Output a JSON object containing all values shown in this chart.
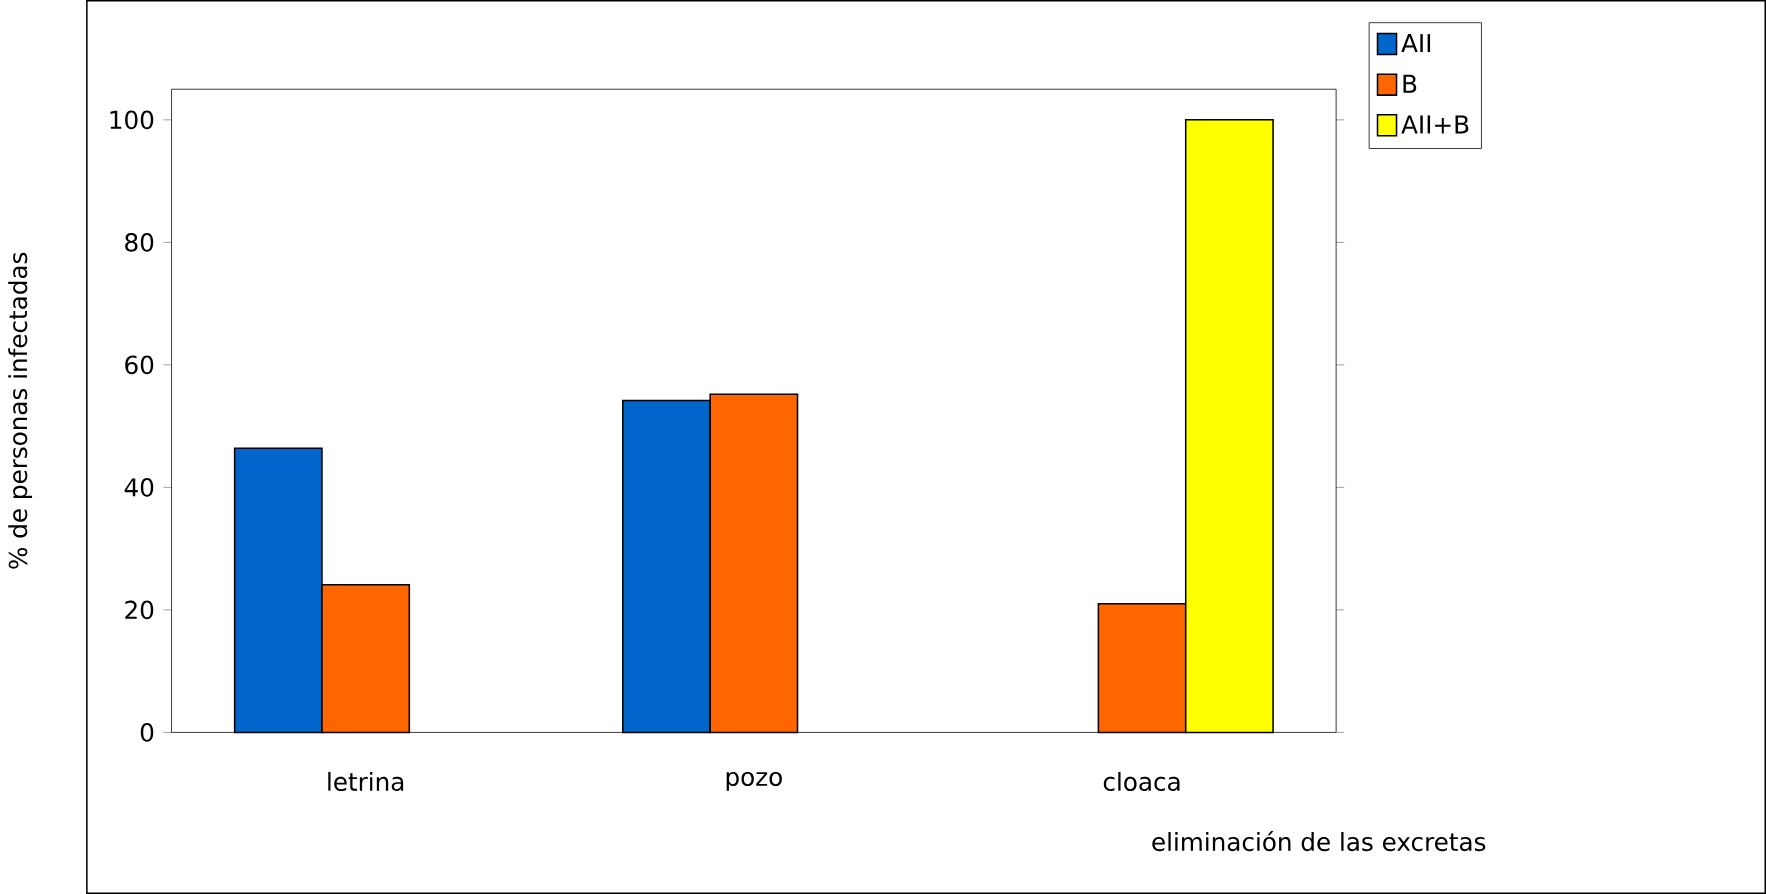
{
  "chart_data": {
    "type": "bar",
    "categories": [
      "letrina",
      "pozo",
      "cloaca"
    ],
    "xlabel": "eliminación de las excretas",
    "ylabel": "% de personas infectadas",
    "series": [
      {
        "name": "AII",
        "color": "#0066cc",
        "values": [
          46.4,
          54.2,
          null
        ]
      },
      {
        "name": "B",
        "color": "#ff6600",
        "values": [
          24.1,
          55.2,
          21.0
        ]
      },
      {
        "name": "AII+B",
        "color": "#ffff00",
        "values": [
          null,
          null,
          100
        ]
      }
    ],
    "ylim": [
      0,
      105
    ],
    "yticks": [
      0,
      20,
      40,
      60,
      80,
      100
    ],
    "grid": false,
    "legend": "top right"
  }
}
